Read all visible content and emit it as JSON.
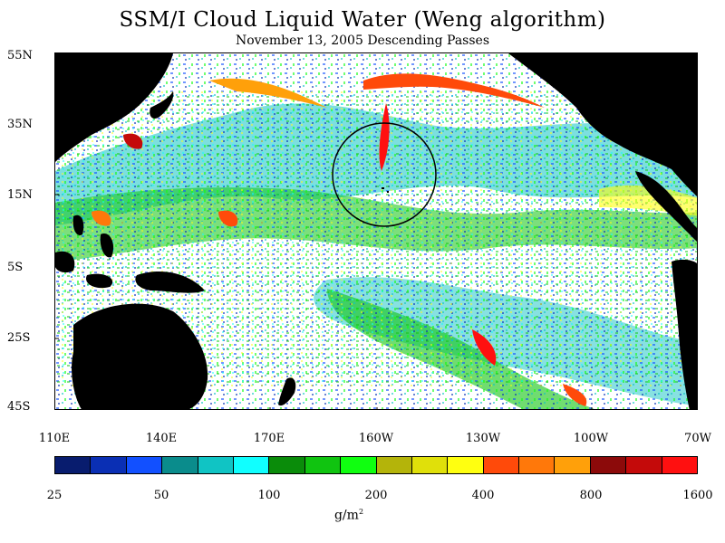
{
  "title": "SSM/I Cloud Liquid Water (Weng algorithm)",
  "subtitle": "November 13, 2005  Descending Passes",
  "map": {
    "lat_labels": [
      "55N",
      "35N",
      "15N",
      "5S",
      "25S",
      "45S"
    ],
    "lon_labels": [
      "110E",
      "140E",
      "170E",
      "160W",
      "130W",
      "100W",
      "70W"
    ],
    "land_color": "#000000",
    "no_cloud_color": "#ffffff",
    "annotation": "circle-around-cloud-vortex"
  },
  "colorbar": {
    "colors": [
      "#081c6e",
      "#0a2fb4",
      "#1250ff",
      "#0a8c8c",
      "#10c4c4",
      "#10ffff",
      "#0a8c0a",
      "#10c410",
      "#10ff10",
      "#b4b40a",
      "#e0e00a",
      "#ffff10",
      "#ff4a0a",
      "#ff780a",
      "#ffa00a",
      "#8c0a0a",
      "#c40a0a",
      "#ff1010"
    ],
    "tick_labels": [
      "25",
      "50",
      "100",
      "200",
      "400",
      "800",
      "1600"
    ],
    "units_main": "g/m",
    "units_sup": "2"
  }
}
